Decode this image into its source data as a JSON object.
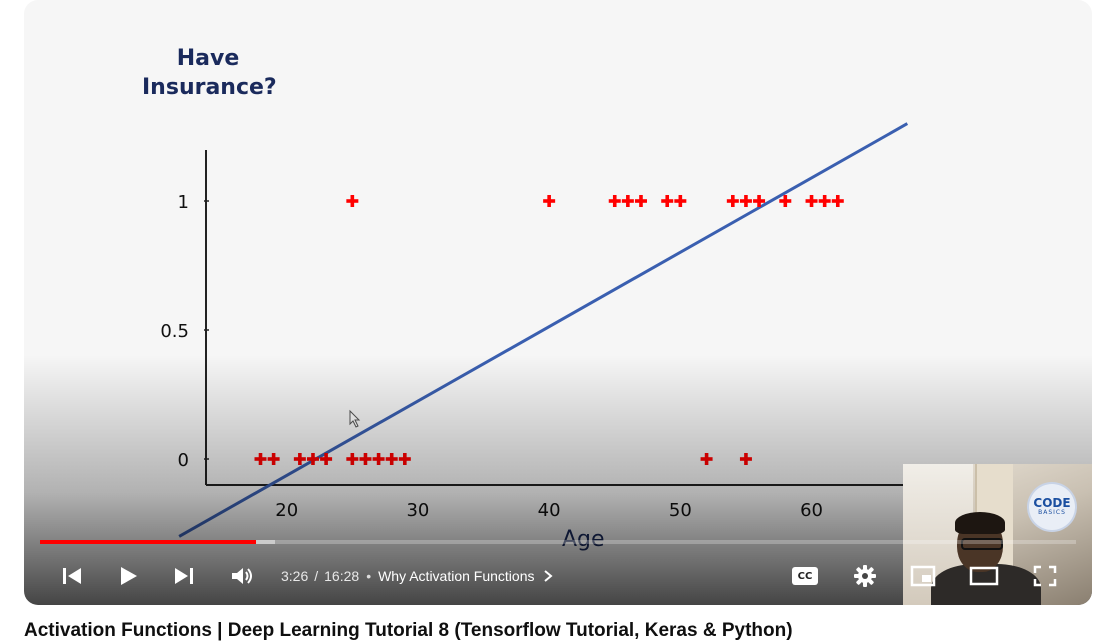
{
  "player": {
    "current_time": "3:26",
    "duration": "16:28",
    "time_separator": "/",
    "chapter_label": "Why Activation Functions",
    "progress_played": 0.2086,
    "progress_buffered": 0.227,
    "colors": {
      "played": "#ff0000",
      "buffered": "#dddddd",
      "icons": "#ffffff"
    },
    "controls": {
      "previous_icon": "skip-previous-icon",
      "play_icon": "play-icon",
      "next_icon": "skip-next-icon",
      "volume_icon": "volume-icon",
      "captions_label": "CC",
      "settings_icon": "gear-icon",
      "miniplayer_icon": "miniplayer-icon",
      "theater_icon": "theater-mode-icon",
      "fullscreen_icon": "fullscreen-icon"
    }
  },
  "video_title": "Activation Functions | Deep Learning Tutorial 8 (Tensorflow Tutorial, Keras & Python)",
  "webcam": {
    "badge_main": "CODE",
    "badge_sub": "BASICS"
  },
  "chart_data": {
    "type": "scatter",
    "ylabel": "Have Insurance?",
    "xlabel": "Age",
    "x_ticks": [
      "20",
      "30",
      "40",
      "50",
      "60"
    ],
    "y_ticks": [
      "0",
      "0.5",
      "1"
    ],
    "xlim": [
      15.5,
      70
    ],
    "ylim": [
      -0.1,
      1.2
    ],
    "marker_color": "#ff0000",
    "line_color": "#3a5fb0",
    "points": [
      {
        "x": 18,
        "y": 0
      },
      {
        "x": 19,
        "y": 0
      },
      {
        "x": 21,
        "y": 0
      },
      {
        "x": 22,
        "y": 0
      },
      {
        "x": 23,
        "y": 0
      },
      {
        "x": 25,
        "y": 0
      },
      {
        "x": 26,
        "y": 0
      },
      {
        "x": 27,
        "y": 0
      },
      {
        "x": 28,
        "y": 0
      },
      {
        "x": 29,
        "y": 0
      },
      {
        "x": 52,
        "y": 0
      },
      {
        "x": 55,
        "y": 0
      },
      {
        "x": 25,
        "y": 1
      },
      {
        "x": 40,
        "y": 1
      },
      {
        "x": 45,
        "y": 1
      },
      {
        "x": 46,
        "y": 1
      },
      {
        "x": 47,
        "y": 1
      },
      {
        "x": 49,
        "y": 1
      },
      {
        "x": 50,
        "y": 1
      },
      {
        "x": 54,
        "y": 1
      },
      {
        "x": 55,
        "y": 1
      },
      {
        "x": 56,
        "y": 1
      },
      {
        "x": 58,
        "y": 1
      },
      {
        "x": 60,
        "y": 1
      },
      {
        "x": 61,
        "y": 1
      },
      {
        "x": 62,
        "y": 1
      }
    ],
    "fit_line": [
      {
        "x": 11.8,
        "y": -0.3
      },
      {
        "x": 67.3,
        "y": 1.3
      }
    ]
  }
}
